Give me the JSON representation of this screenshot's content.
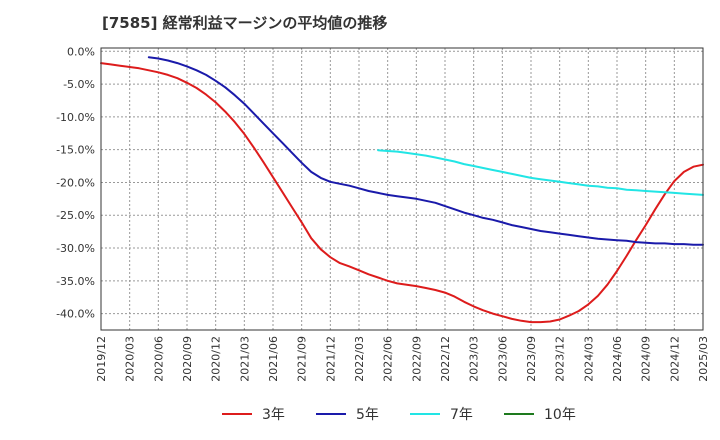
{
  "chart_data": {
    "type": "line",
    "title": "[7585]  経常利益マージンの平均値の推移",
    "xlabel": "",
    "ylabel": "",
    "ylim": [
      -42.5,
      0.5
    ],
    "y_ticks": [
      0,
      -5,
      -10,
      -15,
      -20,
      -25,
      -30,
      -35,
      -40
    ],
    "y_tick_labels": [
      "0.0%",
      "-5.0%",
      "-10.0%",
      "-15.0%",
      "-20.0%",
      "-25.0%",
      "-30.0%",
      "-35.0%",
      "-40.0%"
    ],
    "x_tick_labels": [
      "2019/12",
      "2020/03",
      "2020/06",
      "2020/09",
      "2020/12",
      "2021/03",
      "2021/06",
      "2021/09",
      "2021/12",
      "2022/03",
      "2022/06",
      "2022/09",
      "2022/12",
      "2023/03",
      "2023/06",
      "2023/09",
      "2023/12",
      "2024/03",
      "2024/06",
      "2024/09",
      "2024/12",
      "2025/03"
    ],
    "grid": true,
    "legend_position": "bottom",
    "series": [
      {
        "name": "3年",
        "color": "#dd1c1c",
        "points": [
          [
            "2019/12",
            -1.8
          ],
          [
            "2020/01",
            -2.0
          ],
          [
            "2020/02",
            -2.2
          ],
          [
            "2020/03",
            -2.4
          ],
          [
            "2020/04",
            -2.6
          ],
          [
            "2020/05",
            -2.9
          ],
          [
            "2020/06",
            -3.2
          ],
          [
            "2020/07",
            -3.6
          ],
          [
            "2020/08",
            -4.1
          ],
          [
            "2020/09",
            -4.8
          ],
          [
            "2020/10",
            -5.6
          ],
          [
            "2020/11",
            -6.6
          ],
          [
            "2020/12",
            -7.8
          ],
          [
            "2021/01",
            -9.2
          ],
          [
            "2021/02",
            -10.8
          ],
          [
            "2021/03",
            -12.6
          ],
          [
            "2021/04",
            -14.7
          ],
          [
            "2021/05",
            -16.9
          ],
          [
            "2021/06",
            -19.2
          ],
          [
            "2021/07",
            -21.5
          ],
          [
            "2021/08",
            -23.8
          ],
          [
            "2021/09",
            -26.1
          ],
          [
            "2021/10",
            -28.5
          ],
          [
            "2021/11",
            -30.2
          ],
          [
            "2021/12",
            -31.4
          ],
          [
            "2022/01",
            -32.3
          ],
          [
            "2022/02",
            -32.8
          ],
          [
            "2022/03",
            -33.4
          ],
          [
            "2022/04",
            -34.0
          ],
          [
            "2022/05",
            -34.5
          ],
          [
            "2022/06",
            -35.0
          ],
          [
            "2022/07",
            -35.4
          ],
          [
            "2022/08",
            -35.6
          ],
          [
            "2022/09",
            -35.8
          ],
          [
            "2022/10",
            -36.1
          ],
          [
            "2022/11",
            -36.4
          ],
          [
            "2022/12",
            -36.8
          ],
          [
            "2023/01",
            -37.4
          ],
          [
            "2023/02",
            -38.2
          ],
          [
            "2023/03",
            -38.9
          ],
          [
            "2023/04",
            -39.5
          ],
          [
            "2023/05",
            -40.0
          ],
          [
            "2023/06",
            -40.4
          ],
          [
            "2023/07",
            -40.8
          ],
          [
            "2023/08",
            -41.1
          ],
          [
            "2023/09",
            -41.3
          ],
          [
            "2023/10",
            -41.3
          ],
          [
            "2023/11",
            -41.2
          ],
          [
            "2023/12",
            -40.9
          ],
          [
            "2024/01",
            -40.3
          ],
          [
            "2024/02",
            -39.6
          ],
          [
            "2024/03",
            -38.6
          ],
          [
            "2024/04",
            -37.3
          ],
          [
            "2024/05",
            -35.6
          ],
          [
            "2024/06",
            -33.5
          ],
          [
            "2024/07",
            -31.2
          ],
          [
            "2024/08",
            -28.8
          ],
          [
            "2024/09",
            -26.5
          ],
          [
            "2024/10",
            -24.1
          ],
          [
            "2024/11",
            -21.8
          ],
          [
            "2024/12",
            -19.8
          ],
          [
            "2025/01",
            -18.4
          ],
          [
            "2025/02",
            -17.6
          ],
          [
            "2025/03",
            -17.3
          ]
        ]
      },
      {
        "name": "5年",
        "color": "#1a1aaa",
        "points": [
          [
            "2020/05",
            -0.9
          ],
          [
            "2020/06",
            -1.1
          ],
          [
            "2020/07",
            -1.4
          ],
          [
            "2020/08",
            -1.8
          ],
          [
            "2020/09",
            -2.3
          ],
          [
            "2020/10",
            -2.9
          ],
          [
            "2020/11",
            -3.6
          ],
          [
            "2020/12",
            -4.5
          ],
          [
            "2021/01",
            -5.5
          ],
          [
            "2021/02",
            -6.7
          ],
          [
            "2021/03",
            -8.0
          ],
          [
            "2021/04",
            -9.5
          ],
          [
            "2021/05",
            -11.0
          ],
          [
            "2021/06",
            -12.5
          ],
          [
            "2021/07",
            -14.0
          ],
          [
            "2021/08",
            -15.5
          ],
          [
            "2021/09",
            -17.0
          ],
          [
            "2021/10",
            -18.4
          ],
          [
            "2021/11",
            -19.3
          ],
          [
            "2021/12",
            -19.9
          ],
          [
            "2022/01",
            -20.2
          ],
          [
            "2022/02",
            -20.5
          ],
          [
            "2022/03",
            -20.9
          ],
          [
            "2022/04",
            -21.3
          ],
          [
            "2022/05",
            -21.6
          ],
          [
            "2022/06",
            -21.9
          ],
          [
            "2022/07",
            -22.1
          ],
          [
            "2022/08",
            -22.3
          ],
          [
            "2022/09",
            -22.5
          ],
          [
            "2022/10",
            -22.8
          ],
          [
            "2022/11",
            -23.1
          ],
          [
            "2022/12",
            -23.6
          ],
          [
            "2023/01",
            -24.1
          ],
          [
            "2023/02",
            -24.6
          ],
          [
            "2023/03",
            -25.0
          ],
          [
            "2023/04",
            -25.4
          ],
          [
            "2023/05",
            -25.7
          ],
          [
            "2023/06",
            -26.1
          ],
          [
            "2023/07",
            -26.5
          ],
          [
            "2023/08",
            -26.8
          ],
          [
            "2023/09",
            -27.1
          ],
          [
            "2023/10",
            -27.4
          ],
          [
            "2023/11",
            -27.6
          ],
          [
            "2023/12",
            -27.8
          ],
          [
            "2024/01",
            -28.0
          ],
          [
            "2024/02",
            -28.2
          ],
          [
            "2024/03",
            -28.4
          ],
          [
            "2024/04",
            -28.6
          ],
          [
            "2024/05",
            -28.7
          ],
          [
            "2024/06",
            -28.8
          ],
          [
            "2024/07",
            -28.9
          ],
          [
            "2024/08",
            -29.1
          ],
          [
            "2024/09",
            -29.2
          ],
          [
            "2024/10",
            -29.3
          ],
          [
            "2024/11",
            -29.3
          ],
          [
            "2024/12",
            -29.4
          ],
          [
            "2025/01",
            -29.4
          ],
          [
            "2025/02",
            -29.5
          ],
          [
            "2025/03",
            -29.5
          ]
        ]
      },
      {
        "name": "7年",
        "color": "#22e5e5",
        "points": [
          [
            "2022/05",
            -15.1
          ],
          [
            "2022/06",
            -15.2
          ],
          [
            "2022/07",
            -15.3
          ],
          [
            "2022/08",
            -15.5
          ],
          [
            "2022/09",
            -15.7
          ],
          [
            "2022/10",
            -15.9
          ],
          [
            "2022/11",
            -16.2
          ],
          [
            "2022/12",
            -16.5
          ],
          [
            "2023/01",
            -16.8
          ],
          [
            "2023/02",
            -17.2
          ],
          [
            "2023/03",
            -17.5
          ],
          [
            "2023/04",
            -17.8
          ],
          [
            "2023/05",
            -18.1
          ],
          [
            "2023/06",
            -18.4
          ],
          [
            "2023/07",
            -18.7
          ],
          [
            "2023/08",
            -19.0
          ],
          [
            "2023/09",
            -19.3
          ],
          [
            "2023/10",
            -19.5
          ],
          [
            "2023/11",
            -19.7
          ],
          [
            "2023/12",
            -19.9
          ],
          [
            "2024/01",
            -20.1
          ],
          [
            "2024/02",
            -20.3
          ],
          [
            "2024/03",
            -20.5
          ],
          [
            "2024/04",
            -20.6
          ],
          [
            "2024/05",
            -20.8
          ],
          [
            "2024/06",
            -20.9
          ],
          [
            "2024/07",
            -21.1
          ],
          [
            "2024/08",
            -21.2
          ],
          [
            "2024/09",
            -21.3
          ],
          [
            "2024/10",
            -21.4
          ],
          [
            "2024/11",
            -21.5
          ],
          [
            "2024/12",
            -21.6
          ],
          [
            "2025/01",
            -21.7
          ],
          [
            "2025/02",
            -21.8
          ],
          [
            "2025/03",
            -21.9
          ]
        ]
      },
      {
        "name": "10年",
        "color": "#1e7a1e",
        "points": []
      }
    ]
  }
}
